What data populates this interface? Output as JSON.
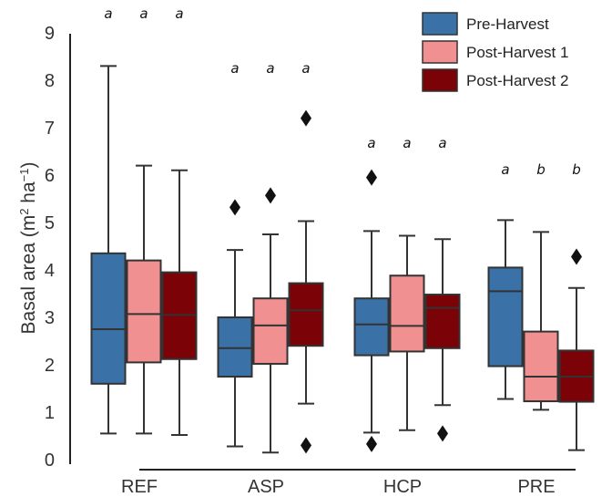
{
  "chart_data": {
    "type": "box",
    "ylabel": "Basal area (m² ha⁻¹)",
    "ylabel_parts": {
      "main": "Basal area (m",
      "sup1": "2",
      "mid": " ha",
      "sup2": "−1",
      "end": ")"
    },
    "xlabel": "",
    "ylim": [
      0,
      9
    ],
    "yticks": [
      "0",
      "1",
      "2",
      "3",
      "4",
      "5",
      "6",
      "7",
      "8",
      "9"
    ],
    "grid": false,
    "legend_position": "top-right",
    "categories": [
      "REF",
      "ASP",
      "HCP",
      "PRE"
    ],
    "series": [
      {
        "name": "Pre-Harvest",
        "color": "#3a72a8"
      },
      {
        "name": "Post-Harvest 1",
        "color": "#f09090"
      },
      {
        "name": "Post-Harvest 2",
        "color": "#7b0207"
      }
    ],
    "boxes": [
      [
        {
          "whisker_low": 0.55,
          "q1": 1.6,
          "median": 2.75,
          "q3": 4.35,
          "whisker_high": 8.3,
          "outliers": [],
          "letter": "a"
        },
        {
          "whisker_low": 0.55,
          "q1": 2.05,
          "median": 3.07,
          "q3": 4.2,
          "whisker_high": 6.2,
          "outliers": [],
          "letter": "a"
        },
        {
          "whisker_low": 0.52,
          "q1": 2.12,
          "median": 3.05,
          "q3": 3.95,
          "whisker_high": 6.1,
          "outliers": [],
          "letter": "a"
        }
      ],
      [
        {
          "whisker_low": 0.28,
          "q1": 1.75,
          "median": 2.35,
          "q3": 3.0,
          "whisker_high": 4.42,
          "outliers": [
            5.32
          ],
          "letter": "a"
        },
        {
          "whisker_low": 0.15,
          "q1": 2.02,
          "median": 2.83,
          "q3": 3.4,
          "whisker_high": 4.75,
          "outliers": [
            5.57
          ],
          "letter": "a"
        },
        {
          "whisker_low": 1.18,
          "q1": 2.4,
          "median": 3.15,
          "q3": 3.72,
          "whisker_high": 5.03,
          "outliers": [
            7.2,
            0.3
          ],
          "letter": "a"
        }
      ],
      [
        {
          "whisker_low": 0.57,
          "q1": 2.2,
          "median": 2.85,
          "q3": 3.4,
          "whisker_high": 4.82,
          "outliers": [
            5.95,
            0.33
          ],
          "letter": "a"
        },
        {
          "whisker_low": 0.62,
          "q1": 2.28,
          "median": 2.82,
          "q3": 3.88,
          "whisker_high": 4.72,
          "outliers": [],
          "letter": "a"
        },
        {
          "whisker_low": 1.15,
          "q1": 2.35,
          "median": 3.2,
          "q3": 3.48,
          "whisker_high": 4.65,
          "outliers": [
            0.55
          ],
          "letter": "a"
        }
      ],
      [
        {
          "whisker_low": 1.28,
          "q1": 1.97,
          "median": 3.55,
          "q3": 4.05,
          "whisker_high": 5.05,
          "outliers": [],
          "letter": "a"
        },
        {
          "whisker_low": 1.05,
          "q1": 1.23,
          "median": 1.75,
          "q3": 2.7,
          "whisker_high": 4.8,
          "outliers": [],
          "letter": "b"
        },
        {
          "whisker_low": 0.2,
          "q1": 1.22,
          "median": 1.75,
          "q3": 2.3,
          "whisker_high": 3.62,
          "outliers": [
            4.28
          ],
          "letter": "b"
        }
      ]
    ]
  }
}
